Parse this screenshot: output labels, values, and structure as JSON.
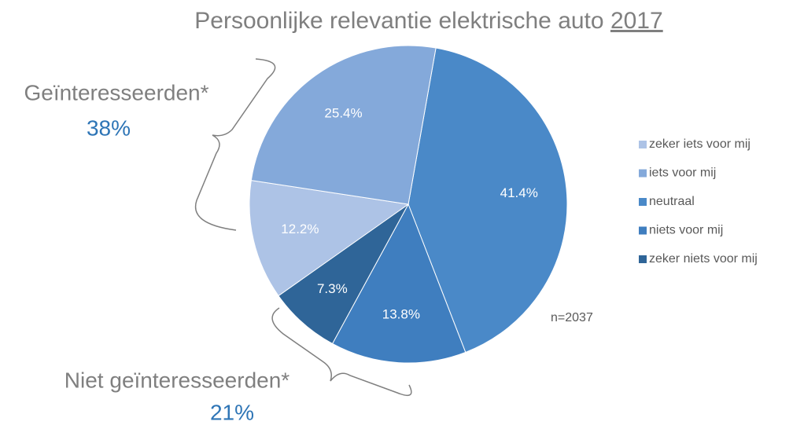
{
  "chart_data": {
    "type": "pie",
    "title": "Persoonlijke relevantie elektrische auto",
    "title_emphasis": "2017",
    "categories": [
      "zeker iets voor mij",
      "iets voor mij",
      "neutraal",
      "niets voor mij",
      "zeker niets voor mij"
    ],
    "values": [
      12.2,
      25.4,
      41.4,
      13.8,
      7.3
    ],
    "value_labels": [
      "12.2%",
      "25.4%",
      "41.4%",
      "13.8%",
      "7.3%"
    ],
    "colors": [
      "#adc3e6",
      "#84a9da",
      "#4a89c8",
      "#3f7ebf",
      "#2f6598"
    ],
    "legend": "right",
    "annotations": [
      "Geïnteresseerden*",
      "38%",
      "Niet geïnteresseerden*",
      "21%",
      "n=2037"
    ]
  }
}
